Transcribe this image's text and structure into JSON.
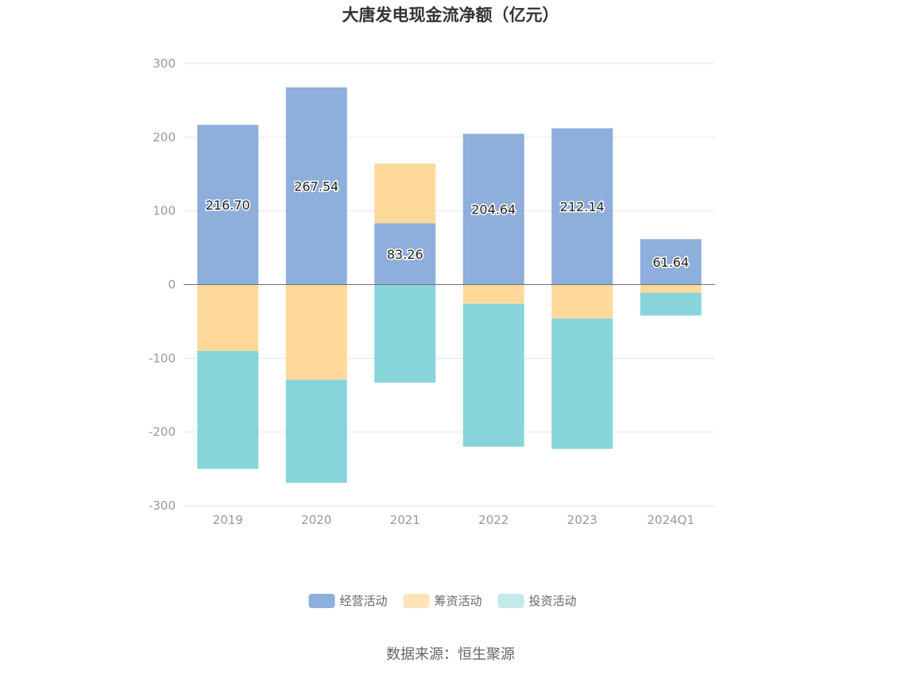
{
  "source_text": "数据来源：恒生聚源",
  "chart_data": {
    "type": "bar",
    "stacked": true,
    "title": "大唐发电现金流净额（亿元）",
    "categories": [
      "2019",
      "2020",
      "2021",
      "2022",
      "2023",
      "2024Q1"
    ],
    "series": [
      {
        "name": "经营活动",
        "color": "#8eaedb",
        "values": [
          216.7,
          267.54,
          83.26,
          204.64,
          212.14,
          61.64
        ]
      },
      {
        "name": "筹资活动",
        "color": "#ffd99a",
        "values": [
          -90,
          -129,
          81,
          -26,
          -46,
          -11
        ]
      },
      {
        "name": "投资活动",
        "color": "#87d5da",
        "values": [
          -160,
          -140,
          -133,
          -194,
          -177,
          -31
        ]
      }
    ],
    "data_labels": [
      "216.70",
      "267.54",
      "83.26",
      "204.64",
      "212.14",
      "61.64"
    ],
    "ylim": [
      -300,
      300
    ],
    "yticks": [
      300,
      200,
      100,
      0,
      -100,
      -200,
      -300
    ],
    "grid": true,
    "legend_position": "bottom",
    "legend_colors": [
      "#8eaedb",
      "#ffe4b8",
      "#c2e9ec"
    ]
  }
}
